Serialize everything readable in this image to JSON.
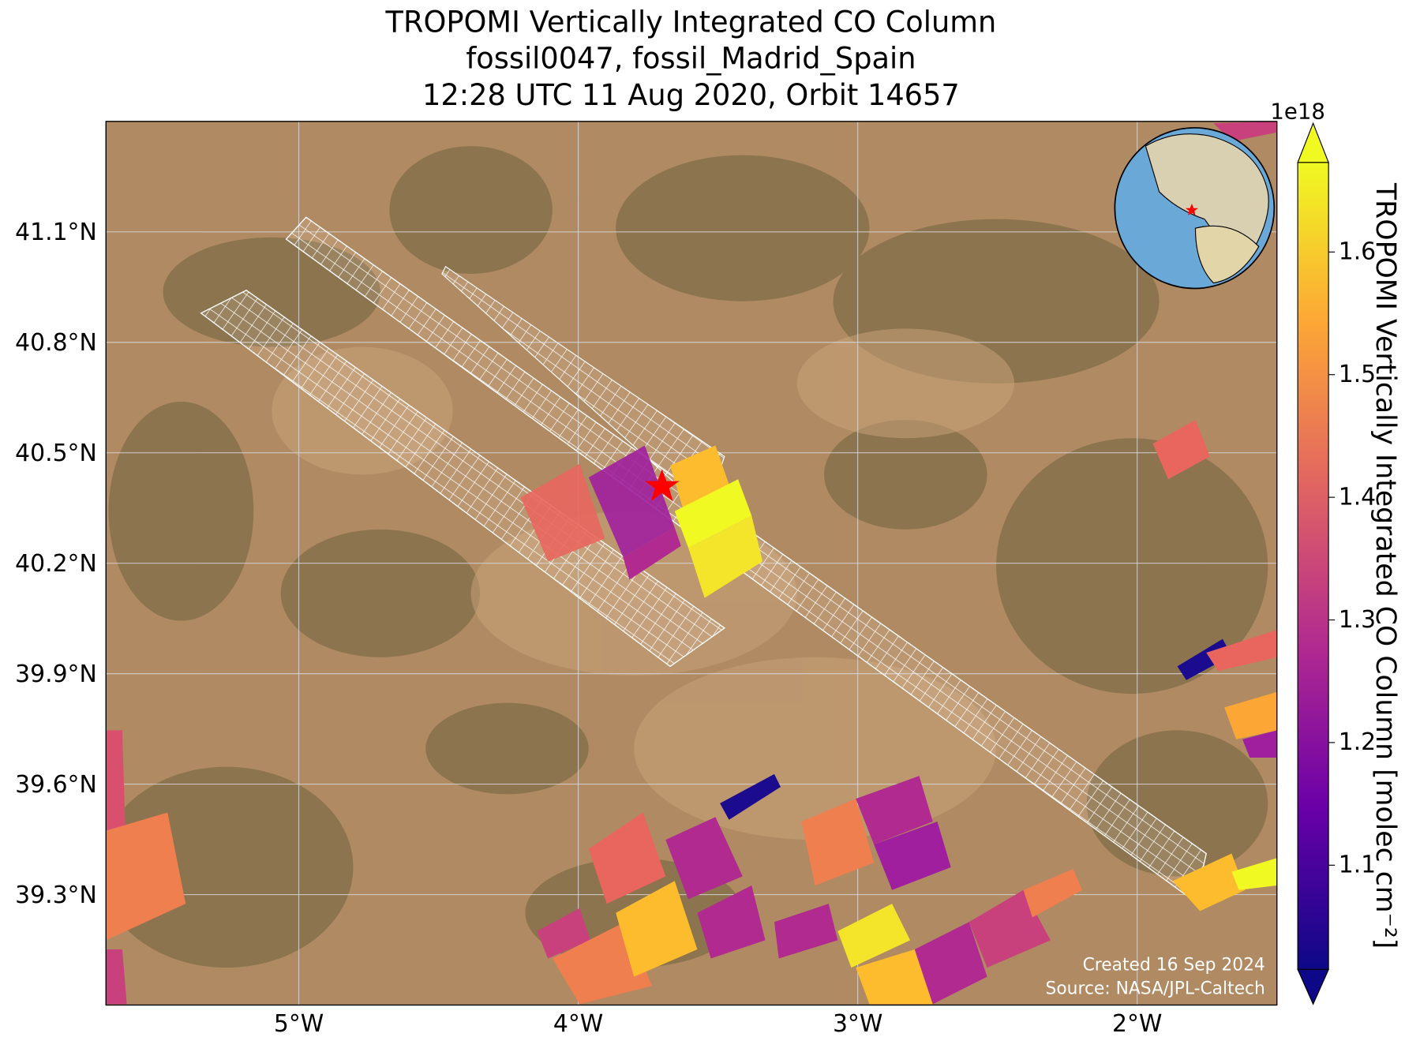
{
  "map": {
    "title": [
      "TROPOMI Vertically Integrated CO Column",
      "fossil0047, fossil_Madrid_Spain",
      "12:28 UTC 11 Aug 2020, Orbit 14657"
    ],
    "xlim": [
      -5.69,
      -1.5
    ],
    "ylim": [
      39.0,
      41.4
    ],
    "lon_ticks": [
      {
        "value": -5,
        "label": "5°W"
      },
      {
        "value": -4,
        "label": "4°W"
      },
      {
        "value": -3,
        "label": "3°W"
      },
      {
        "value": -2,
        "label": "2°W"
      }
    ],
    "lat_ticks": [
      {
        "value": 41.1,
        "label": "41.1°N"
      },
      {
        "value": 40.8,
        "label": "40.8°N"
      },
      {
        "value": 40.5,
        "label": "40.5°N"
      },
      {
        "value": 40.2,
        "label": "40.2°N"
      },
      {
        "value": 39.9,
        "label": "39.9°N"
      },
      {
        "value": 39.6,
        "label": "39.6°N"
      },
      {
        "value": 39.3,
        "label": "39.3°N"
      }
    ],
    "grid": true,
    "colorbar": {
      "label": "TROPOMI Vertically Integrated CO Column [molec cm⁻²]",
      "offset_label": "1e18",
      "lim": [
        1.015,
        1.673
      ],
      "ticks": [
        1.1,
        1.2,
        1.3,
        1.4,
        1.5,
        1.6
      ]
    },
    "credits": [
      "Created 16 Sep 2024",
      "Source: NASA/JPL-Caltech"
    ]
  }
}
